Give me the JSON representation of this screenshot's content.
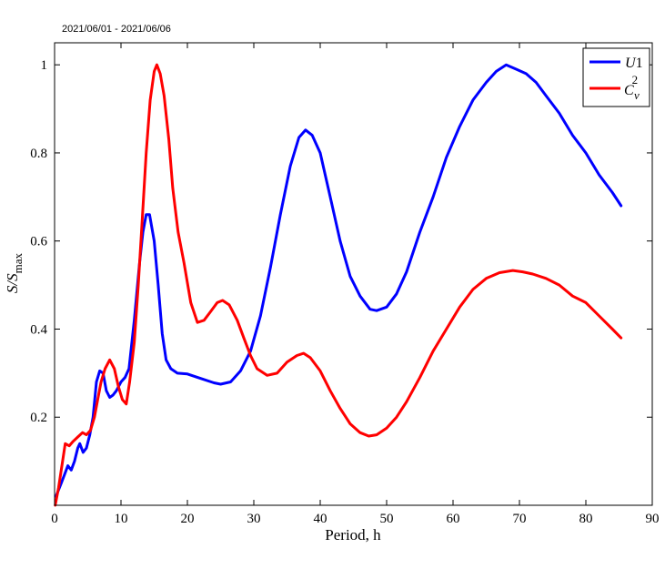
{
  "header": {
    "date_range": "2021/06/01 - 2021/06/06"
  },
  "chart_data": {
    "type": "line",
    "title": "",
    "xlabel": "Period, h",
    "ylabel": {
      "main": "S/S",
      "sub": "max"
    },
    "xlim": [
      0,
      90
    ],
    "ylim": [
      0,
      1.05
    ],
    "xticks": [
      0,
      10,
      20,
      30,
      40,
      50,
      60,
      70,
      80,
      90
    ],
    "yticks": [
      0.2,
      0.4,
      0.6,
      0.8,
      1
    ],
    "ytick_labels": [
      "0.2",
      "0.4",
      "0.6",
      "0.8",
      "1"
    ],
    "grid": false,
    "legend_position": "top-right",
    "series": [
      {
        "name": "U1",
        "legend": {
          "main": "U",
          "suffix": "1"
        },
        "color": "#0000ff",
        "points": [
          [
            0.2,
            0.02
          ],
          [
            1,
            0.05
          ],
          [
            1.5,
            0.07
          ],
          [
            2,
            0.09
          ],
          [
            2.5,
            0.08
          ],
          [
            3,
            0.1
          ],
          [
            3.5,
            0.13
          ],
          [
            3.8,
            0.14
          ],
          [
            4.3,
            0.12
          ],
          [
            4.8,
            0.13
          ],
          [
            5.3,
            0.16
          ],
          [
            5.8,
            0.2
          ],
          [
            6.3,
            0.28
          ],
          [
            6.8,
            0.305
          ],
          [
            7.3,
            0.3
          ],
          [
            7.8,
            0.26
          ],
          [
            8.3,
            0.245
          ],
          [
            8.8,
            0.25
          ],
          [
            9.3,
            0.26
          ],
          [
            10,
            0.28
          ],
          [
            10.6,
            0.29
          ],
          [
            11.2,
            0.31
          ],
          [
            12,
            0.42
          ],
          [
            12.8,
            0.55
          ],
          [
            13.3,
            0.62
          ],
          [
            13.8,
            0.66
          ],
          [
            14.3,
            0.66
          ],
          [
            15,
            0.6
          ],
          [
            15.6,
            0.5
          ],
          [
            16.2,
            0.39
          ],
          [
            16.8,
            0.33
          ],
          [
            17.5,
            0.31
          ],
          [
            18.5,
            0.3
          ],
          [
            20,
            0.298
          ],
          [
            22,
            0.288
          ],
          [
            24,
            0.278
          ],
          [
            25,
            0.275
          ],
          [
            26.5,
            0.28
          ],
          [
            28,
            0.305
          ],
          [
            29.5,
            0.35
          ],
          [
            31,
            0.43
          ],
          [
            32.5,
            0.54
          ],
          [
            34,
            0.66
          ],
          [
            35.5,
            0.77
          ],
          [
            36.8,
            0.835
          ],
          [
            37.8,
            0.852
          ],
          [
            38.8,
            0.84
          ],
          [
            40,
            0.8
          ],
          [
            41.5,
            0.7
          ],
          [
            43,
            0.6
          ],
          [
            44.5,
            0.52
          ],
          [
            46,
            0.475
          ],
          [
            47.5,
            0.445
          ],
          [
            48.5,
            0.442
          ],
          [
            50,
            0.45
          ],
          [
            51.5,
            0.48
          ],
          [
            53,
            0.53
          ],
          [
            55,
            0.62
          ],
          [
            57,
            0.7
          ],
          [
            59,
            0.79
          ],
          [
            61,
            0.86
          ],
          [
            63,
            0.92
          ],
          [
            65,
            0.96
          ],
          [
            66.5,
            0.985
          ],
          [
            68,
            1.0
          ],
          [
            69.5,
            0.99
          ],
          [
            71,
            0.98
          ],
          [
            72.5,
            0.96
          ],
          [
            74,
            0.93
          ],
          [
            76,
            0.89
          ],
          [
            78,
            0.84
          ],
          [
            80,
            0.8
          ],
          [
            82,
            0.75
          ],
          [
            84,
            0.71
          ],
          [
            85.3,
            0.68
          ]
        ]
      },
      {
        "name": "C_v^2",
        "legend": {
          "main": "C",
          "sub": "v",
          "sup": "2"
        },
        "color": "#ff0000",
        "points": [
          [
            0.1,
            0.0
          ],
          [
            0.6,
            0.04
          ],
          [
            1.2,
            0.1
          ],
          [
            1.6,
            0.14
          ],
          [
            2.2,
            0.135
          ],
          [
            2.8,
            0.145
          ],
          [
            3.5,
            0.155
          ],
          [
            4.2,
            0.165
          ],
          [
            4.8,
            0.16
          ],
          [
            5.4,
            0.17
          ],
          [
            6,
            0.2
          ],
          [
            6.5,
            0.24
          ],
          [
            7,
            0.28
          ],
          [
            7.6,
            0.31
          ],
          [
            8.3,
            0.33
          ],
          [
            9,
            0.31
          ],
          [
            9.6,
            0.27
          ],
          [
            10.2,
            0.24
          ],
          [
            10.8,
            0.23
          ],
          [
            11.3,
            0.28
          ],
          [
            12,
            0.37
          ],
          [
            12.6,
            0.5
          ],
          [
            13.2,
            0.65
          ],
          [
            13.8,
            0.8
          ],
          [
            14.4,
            0.92
          ],
          [
            15,
            0.985
          ],
          [
            15.4,
            1.0
          ],
          [
            15.9,
            0.98
          ],
          [
            16.5,
            0.93
          ],
          [
            17.2,
            0.83
          ],
          [
            17.8,
            0.72
          ],
          [
            18.6,
            0.62
          ],
          [
            19.5,
            0.55
          ],
          [
            20.5,
            0.46
          ],
          [
            21.5,
            0.415
          ],
          [
            22.5,
            0.42
          ],
          [
            23.5,
            0.44
          ],
          [
            24.5,
            0.46
          ],
          [
            25.3,
            0.465
          ],
          [
            26.3,
            0.455
          ],
          [
            27.5,
            0.42
          ],
          [
            28.5,
            0.38
          ],
          [
            29.5,
            0.34
          ],
          [
            30.5,
            0.31
          ],
          [
            32,
            0.295
          ],
          [
            33.5,
            0.3
          ],
          [
            35,
            0.325
          ],
          [
            36.5,
            0.34
          ],
          [
            37.5,
            0.345
          ],
          [
            38.5,
            0.335
          ],
          [
            40,
            0.305
          ],
          [
            41.5,
            0.26
          ],
          [
            43,
            0.22
          ],
          [
            44.5,
            0.185
          ],
          [
            46,
            0.165
          ],
          [
            47.3,
            0.157
          ],
          [
            48.5,
            0.16
          ],
          [
            50,
            0.175
          ],
          [
            51.5,
            0.2
          ],
          [
            53,
            0.235
          ],
          [
            55,
            0.29
          ],
          [
            57,
            0.35
          ],
          [
            59,
            0.4
          ],
          [
            61,
            0.45
          ],
          [
            63,
            0.49
          ],
          [
            65,
            0.515
          ],
          [
            67,
            0.528
          ],
          [
            69,
            0.533
          ],
          [
            70.5,
            0.53
          ],
          [
            72,
            0.525
          ],
          [
            74,
            0.515
          ],
          [
            76,
            0.5
          ],
          [
            78,
            0.475
          ],
          [
            80,
            0.46
          ],
          [
            82,
            0.43
          ],
          [
            84,
            0.4
          ],
          [
            85.3,
            0.38
          ]
        ]
      }
    ]
  }
}
